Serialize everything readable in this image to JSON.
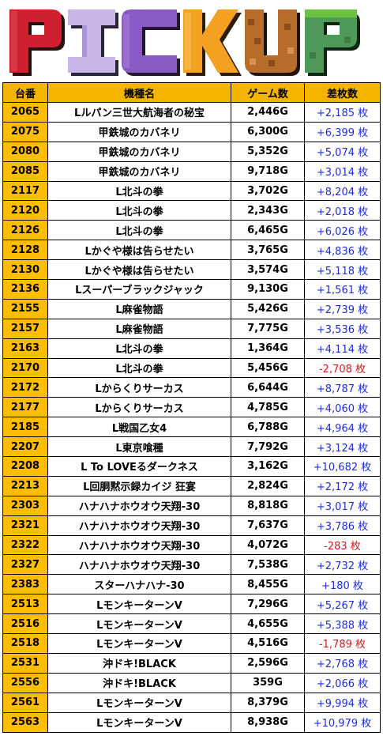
{
  "banner": {
    "title": "PICKUP",
    "letter_colors": [
      "#cf2030",
      "#c7b6e6",
      "#f4a020",
      "#b76e2c",
      "#4f9a58",
      "#6cc23e"
    ]
  },
  "table": {
    "headers": [
      "台番",
      "機種名",
      "ゲーム数",
      "差枚数"
    ],
    "rows": [
      {
        "no": "2065",
        "name": "Lルパン三世大航海者の秘宝",
        "games": "2,446G",
        "diff": "+2,185 枚",
        "neg": false
      },
      {
        "no": "2075",
        "name": "甲鉄城のカバネリ",
        "games": "6,300G",
        "diff": "+6,399 枚",
        "neg": false
      },
      {
        "no": "2080",
        "name": "甲鉄城のカバネリ",
        "games": "5,352G",
        "diff": "+5,074 枚",
        "neg": false
      },
      {
        "no": "2085",
        "name": "甲鉄城のカバネリ",
        "games": "9,718G",
        "diff": "+3,014 枚",
        "neg": false
      },
      {
        "no": "2117",
        "name": "L北斗の拳",
        "games": "3,702G",
        "diff": "+8,204 枚",
        "neg": false
      },
      {
        "no": "2120",
        "name": "L北斗の拳",
        "games": "2,343G",
        "diff": "+2,018 枚",
        "neg": false
      },
      {
        "no": "2126",
        "name": "L北斗の拳",
        "games": "6,465G",
        "diff": "+6,026 枚",
        "neg": false
      },
      {
        "no": "2128",
        "name": "Lかぐや様は告らせたい",
        "games": "3,765G",
        "diff": "+4,836 枚",
        "neg": false
      },
      {
        "no": "2130",
        "name": "Lかぐや様は告らせたい",
        "games": "3,574G",
        "diff": "+5,118 枚",
        "neg": false
      },
      {
        "no": "2136",
        "name": "Lスーパーブラックジャック",
        "games": "9,130G",
        "diff": "+1,561 枚",
        "neg": false
      },
      {
        "no": "2155",
        "name": "L麻雀物語",
        "games": "5,426G",
        "diff": "+2,739 枚",
        "neg": false
      },
      {
        "no": "2157",
        "name": "L麻雀物語",
        "games": "7,775G",
        "diff": "+3,536 枚",
        "neg": false
      },
      {
        "no": "2163",
        "name": "L北斗の拳",
        "games": "1,364G",
        "diff": "+4,114 枚",
        "neg": false
      },
      {
        "no": "2170",
        "name": "L北斗の拳",
        "games": "5,456G",
        "diff": "-2,708 枚",
        "neg": true
      },
      {
        "no": "2172",
        "name": "Lからくりサーカス",
        "games": "6,644G",
        "diff": "+8,787 枚",
        "neg": false
      },
      {
        "no": "2177",
        "name": "Lからくりサーカス",
        "games": "4,785G",
        "diff": "+4,060 枚",
        "neg": false
      },
      {
        "no": "2185",
        "name": "L戦国乙女4",
        "games": "6,788G",
        "diff": "+4,964 枚",
        "neg": false
      },
      {
        "no": "2207",
        "name": "L東京喰種",
        "games": "7,792G",
        "diff": "+3,124 枚",
        "neg": false
      },
      {
        "no": "2208",
        "name": "L To LOVEるダークネス",
        "games": "3,162G",
        "diff": "+10,682 枚",
        "neg": false
      },
      {
        "no": "2213",
        "name": "L回胴黙示録カイジ 狂宴",
        "games": "2,824G",
        "diff": "+2,172 枚",
        "neg": false
      },
      {
        "no": "2303",
        "name": "ハナハナホウオウ天翔-30",
        "games": "8,818G",
        "diff": "+3,017 枚",
        "neg": false
      },
      {
        "no": "2321",
        "name": "ハナハナホウオウ天翔-30",
        "games": "7,637G",
        "diff": "+3,786 枚",
        "neg": false
      },
      {
        "no": "2322",
        "name": "ハナハナホウオウ天翔-30",
        "games": "4,072G",
        "diff": "-283 枚",
        "neg": true
      },
      {
        "no": "2327",
        "name": "ハナハナホウオウ天翔-30",
        "games": "7,538G",
        "diff": "+2,732 枚",
        "neg": false
      },
      {
        "no": "2383",
        "name": "スターハナハナ-30",
        "games": "8,455G",
        "diff": "+180 枚",
        "neg": false
      },
      {
        "no": "2513",
        "name": "LモンキーターンV",
        "games": "7,296G",
        "diff": "+5,267 枚",
        "neg": false
      },
      {
        "no": "2516",
        "name": "LモンキーターンV",
        "games": "4,655G",
        "diff": "+5,388 枚",
        "neg": false
      },
      {
        "no": "2518",
        "name": "LモンキーターンV",
        "games": "4,516G",
        "diff": "-1,789 枚",
        "neg": true
      },
      {
        "no": "2531",
        "name": "沖ドキ!BLACK",
        "games": "2,596G",
        "diff": "+2,768 枚",
        "neg": false
      },
      {
        "no": "2556",
        "name": "沖ドキ!BLACK",
        "games": "359G",
        "diff": "+2,066 枚",
        "neg": false
      },
      {
        "no": "2561",
        "name": "LモンキーターンV",
        "games": "8,379G",
        "diff": "+9,994 枚",
        "neg": false
      },
      {
        "no": "2563",
        "name": "LモンキーターンV",
        "games": "8,938G",
        "diff": "+10,979 枚",
        "neg": false
      }
    ]
  }
}
